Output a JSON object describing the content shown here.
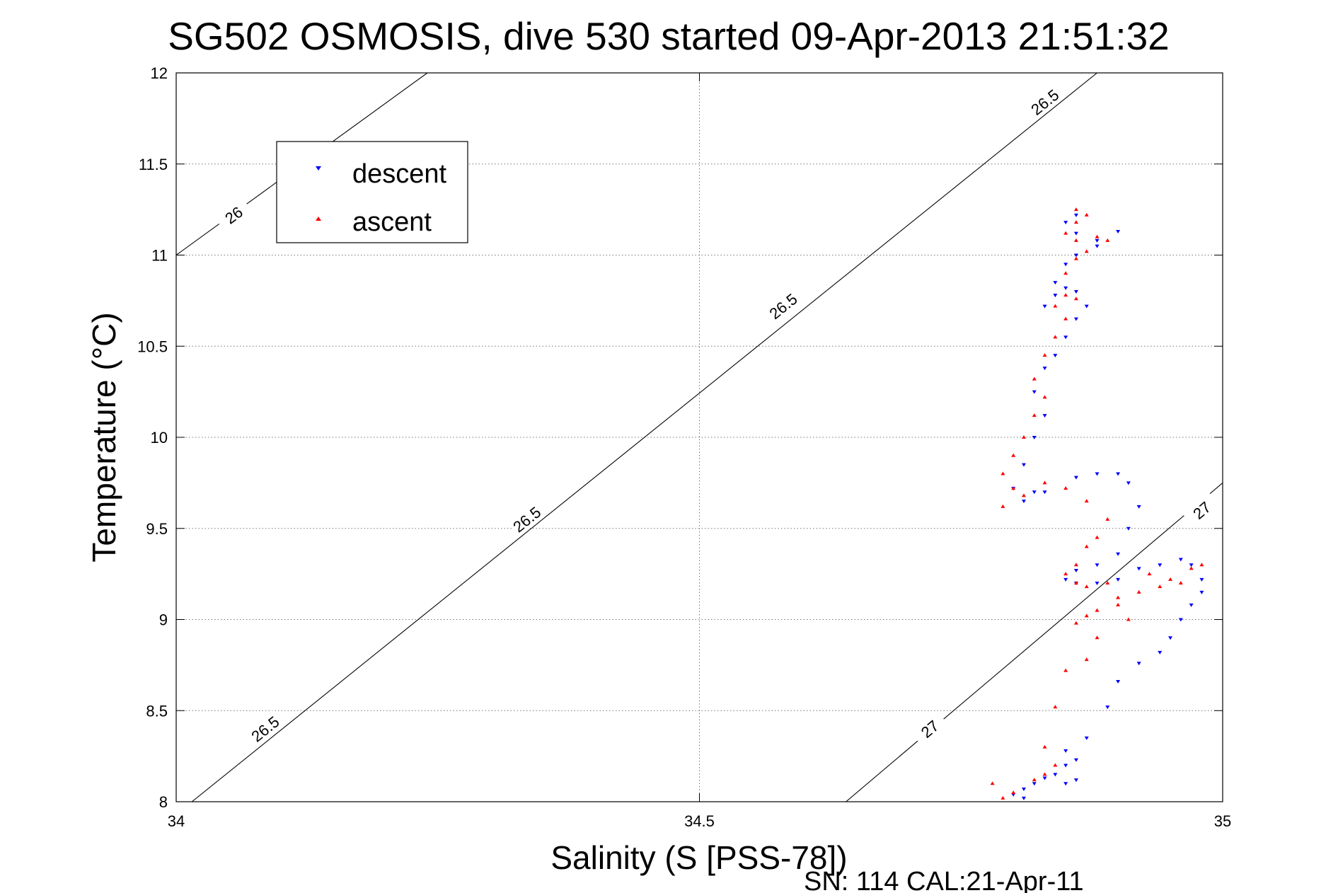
{
  "chart_data": {
    "type": "scatter",
    "title": "SG502 OSMOSIS, dive 530 started 09-Apr-2013 21:51:32",
    "xlabel": "Salinity (S [PSS-78])",
    "ylabel": "Temperature (°C)",
    "footnote": "SN: 114  CAL:21-Apr-11",
    "xlim": [
      34,
      35
    ],
    "ylim": [
      8,
      12
    ],
    "x_ticks": [
      "34",
      "34.5",
      "35"
    ],
    "y_ticks": [
      "8",
      "8.5",
      "9",
      "9.5",
      "10",
      "10.5",
      "11",
      "11.5",
      "12"
    ],
    "grid": true,
    "legend": {
      "placement": "top-left",
      "entries": [
        "descent",
        "ascent"
      ]
    },
    "colors": {
      "descent": "#0000ff",
      "ascent": "#ff0000",
      "contour": "#000000",
      "grid": "#777777"
    },
    "contours": [
      {
        "sigma": 26,
        "label": "26",
        "points": [
          [
            34.0,
            11.0
          ],
          [
            34.24,
            12.0
          ]
        ]
      },
      {
        "sigma": 26.5,
        "label": "26.5",
        "points": [
          [
            34.015,
            8.0
          ],
          [
            34.88,
            12.0
          ]
        ]
      },
      {
        "sigma": 27,
        "label": "27",
        "points": [
          [
            34.64,
            8.0
          ],
          [
            35.0,
            9.75
          ]
        ]
      }
    ],
    "contour_labels": [
      {
        "text": "26",
        "at": [
          34.055,
          11.22
        ]
      },
      {
        "text": "26.5",
        "at": [
          34.085,
          8.4
        ]
      },
      {
        "text": "26.5",
        "at": [
          34.335,
          9.55
        ]
      },
      {
        "text": "26.5",
        "at": [
          34.58,
          10.72
        ]
      },
      {
        "text": "26.5",
        "at": [
          34.83,
          11.84
        ]
      },
      {
        "text": "27",
        "at": [
          34.72,
          8.4
        ]
      },
      {
        "text": "27",
        "at": [
          34.98,
          9.6
        ]
      }
    ],
    "series": [
      {
        "name": "descent",
        "marker": "triangle-down",
        "points": [
          [
            34.81,
            8.02
          ],
          [
            34.8,
            8.04
          ],
          [
            34.81,
            8.07
          ],
          [
            34.82,
            8.1
          ],
          [
            34.83,
            8.13
          ],
          [
            34.84,
            8.15
          ],
          [
            34.85,
            8.1
          ],
          [
            34.86,
            8.12
          ],
          [
            34.85,
            8.2
          ],
          [
            34.86,
            8.23
          ],
          [
            34.85,
            8.28
          ],
          [
            34.87,
            8.35
          ],
          [
            34.89,
            8.52
          ],
          [
            34.9,
            8.66
          ],
          [
            34.92,
            8.76
          ],
          [
            34.94,
            8.82
          ],
          [
            34.95,
            8.9
          ],
          [
            34.96,
            9.0
          ],
          [
            34.97,
            9.08
          ],
          [
            34.98,
            9.15
          ],
          [
            34.98,
            9.22
          ],
          [
            34.97,
            9.3
          ],
          [
            34.96,
            9.33
          ],
          [
            34.94,
            9.3
          ],
          [
            34.92,
            9.28
          ],
          [
            34.9,
            9.22
          ],
          [
            34.88,
            9.2
          ],
          [
            34.86,
            9.2
          ],
          [
            34.85,
            9.22
          ],
          [
            34.86,
            9.27
          ],
          [
            34.88,
            9.3
          ],
          [
            34.9,
            9.36
          ],
          [
            34.91,
            9.5
          ],
          [
            34.92,
            9.62
          ],
          [
            34.91,
            9.75
          ],
          [
            34.9,
            9.8
          ],
          [
            34.88,
            9.8
          ],
          [
            34.86,
            9.78
          ],
          [
            34.83,
            9.7
          ],
          [
            34.81,
            9.65
          ],
          [
            34.82,
            9.7
          ],
          [
            34.8,
            9.72
          ],
          [
            34.81,
            9.85
          ],
          [
            34.82,
            10.0
          ],
          [
            34.83,
            10.12
          ],
          [
            34.82,
            10.25
          ],
          [
            34.83,
            10.38
          ],
          [
            34.84,
            10.45
          ],
          [
            34.85,
            10.55
          ],
          [
            34.86,
            10.65
          ],
          [
            34.87,
            10.72
          ],
          [
            34.86,
            10.8
          ],
          [
            34.85,
            10.82
          ],
          [
            34.84,
            10.78
          ],
          [
            34.83,
            10.72
          ],
          [
            34.84,
            10.85
          ],
          [
            34.85,
            10.95
          ],
          [
            34.86,
            11.0
          ],
          [
            34.88,
            11.05
          ],
          [
            34.9,
            11.13
          ],
          [
            34.88,
            11.08
          ],
          [
            34.86,
            11.12
          ],
          [
            34.85,
            11.18
          ],
          [
            34.86,
            11.22
          ]
        ]
      },
      {
        "name": "ascent",
        "marker": "triangle-up",
        "points": [
          [
            34.79,
            8.02
          ],
          [
            34.78,
            8.1
          ],
          [
            34.8,
            8.05
          ],
          [
            34.82,
            8.12
          ],
          [
            34.83,
            8.15
          ],
          [
            34.84,
            8.2
          ],
          [
            34.83,
            8.3
          ],
          [
            34.84,
            8.52
          ],
          [
            34.85,
            8.72
          ],
          [
            34.87,
            8.78
          ],
          [
            34.88,
            8.9
          ],
          [
            34.88,
            9.05
          ],
          [
            34.9,
            9.12
          ],
          [
            34.89,
            9.2
          ],
          [
            34.87,
            9.18
          ],
          [
            34.86,
            9.2
          ],
          [
            34.85,
            9.25
          ],
          [
            34.86,
            9.3
          ],
          [
            34.87,
            9.4
          ],
          [
            34.88,
            9.45
          ],
          [
            34.89,
            9.55
          ],
          [
            34.87,
            9.65
          ],
          [
            34.85,
            9.72
          ],
          [
            34.83,
            9.75
          ],
          [
            34.81,
            9.68
          ],
          [
            34.79,
            9.62
          ],
          [
            34.8,
            9.72
          ],
          [
            34.79,
            9.8
          ],
          [
            34.8,
            9.9
          ],
          [
            34.81,
            10.0
          ],
          [
            34.82,
            10.12
          ],
          [
            34.83,
            10.22
          ],
          [
            34.82,
            10.32
          ],
          [
            34.83,
            10.45
          ],
          [
            34.84,
            10.55
          ],
          [
            34.85,
            10.65
          ],
          [
            34.84,
            10.72
          ],
          [
            34.85,
            10.78
          ],
          [
            34.86,
            10.76
          ],
          [
            34.85,
            10.9
          ],
          [
            34.86,
            10.98
          ],
          [
            34.87,
            11.02
          ],
          [
            34.89,
            11.08
          ],
          [
            34.88,
            11.1
          ],
          [
            34.86,
            11.08
          ],
          [
            34.85,
            11.12
          ],
          [
            34.86,
            11.18
          ],
          [
            34.86,
            11.25
          ],
          [
            34.87,
            11.22
          ],
          [
            34.93,
            9.25
          ],
          [
            34.95,
            9.22
          ],
          [
            34.97,
            9.28
          ],
          [
            34.98,
            9.3
          ],
          [
            34.96,
            9.2
          ],
          [
            34.94,
            9.18
          ],
          [
            34.92,
            9.15
          ],
          [
            34.9,
            9.08
          ],
          [
            34.91,
            9.0
          ],
          [
            34.87,
            9.02
          ],
          [
            34.86,
            8.98
          ]
        ]
      }
    ]
  }
}
